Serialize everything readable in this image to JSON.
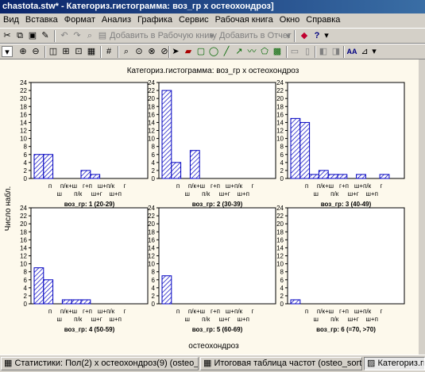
{
  "window": {
    "title": "chastota.stw* - Категориз.гистограмма: воз_гр x остеохондроз]"
  },
  "menu": [
    "Вид",
    "Вставка",
    "Формат",
    "Анализ",
    "Графика",
    "Сервис",
    "Рабочая книга",
    "Окно",
    "Справка"
  ],
  "toolbar": {
    "add_workbook": "Добавить в Рабочую книгу",
    "add_report": "Добавить в Отчет"
  },
  "chart": {
    "title": "Категориз.гистограмма: воз_гр x остеохондроз",
    "ylabel": "Число набл.",
    "xlabel": "остеохондроз",
    "tick_top": [
      "п",
      "п/к+ш",
      "г+п",
      "ш+п/к",
      "г"
    ],
    "tick_bottom": [
      "ш",
      "п/к",
      "ш+г",
      "ш+п"
    ]
  },
  "chart_data": {
    "type": "bar",
    "categories": [
      "п",
      "ш",
      "п/к+ш",
      "п/к",
      "г+п",
      "ш+г",
      "ш+п/к",
      "ш+п",
      "г"
    ],
    "ylim": [
      0,
      24
    ],
    "yticks": [
      0,
      2,
      4,
      6,
      8,
      10,
      12,
      14,
      16,
      18,
      20,
      22,
      24
    ],
    "panels": [
      {
        "label": "воз_гр: 1 (20-29)",
        "values": [
          6,
          6,
          0,
          0,
          0,
          2,
          1,
          0,
          0
        ]
      },
      {
        "label": "воз_гр: 2 (30-39)",
        "values": [
          22,
          4,
          0,
          7,
          0,
          0,
          0,
          0,
          0
        ]
      },
      {
        "label": "воз_гр: 3 (40-49)",
        "values": [
          15,
          14,
          1,
          2,
          1,
          1,
          0,
          1,
          1
        ]
      },
      {
        "label": "воз_гр: 4 (50-59)",
        "values": [
          9,
          6,
          0,
          1,
          1,
          1,
          0,
          0,
          0
        ]
      },
      {
        "label": "воз_гр: 5 (60-69)",
        "values": [
          7,
          0,
          0,
          0,
          0,
          0,
          0,
          0,
          0
        ]
      },
      {
        "label": "воз_гр: 6 (=70, >70)",
        "values": [
          1,
          0,
          0,
          0,
          0,
          0,
          0,
          0,
          0
        ]
      }
    ]
  },
  "taskbar": [
    {
      "label": "Статистики: Пол(2) x остеохондроз(9) (osteo_sort.sta)"
    },
    {
      "label": "Итоговая таблица частот (osteo_sort.sta)"
    },
    {
      "label": "Категориз.гистограмма"
    }
  ]
}
